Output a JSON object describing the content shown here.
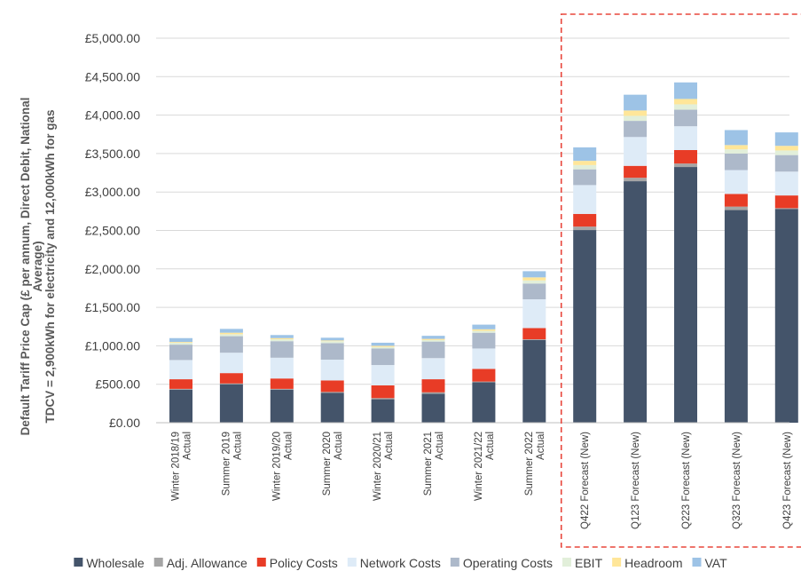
{
  "chart_data": {
    "type": "bar",
    "stacked": true,
    "ylabel_lines": [
      "Default Tariff Price Cap (£ per annum, Direct Debit, National",
      "Average)",
      "TDCV = 2,900kWh for electricity and 12,000kWh for gas"
    ],
    "ylim": [
      0,
      5000
    ],
    "yticks": [
      "£0.00",
      "£500.00",
      "£1,000.00",
      "£1,500.00",
      "£2,000.00",
      "£2,500.00",
      "£3,000.00",
      "£3,500.00",
      "£4,000.00",
      "£4,500.00",
      "£5,000.00"
    ],
    "ytick_values": [
      0,
      500,
      1000,
      1500,
      2000,
      2500,
      3000,
      3500,
      4000,
      4500,
      5000
    ],
    "grid": true,
    "legend_position": "bottom",
    "categories": [
      [
        "Winter 2018/19",
        "Actual"
      ],
      [
        "Summer 2019",
        "Actual"
      ],
      [
        "Winter 2019/20",
        "Actual"
      ],
      [
        "Summer 2020",
        "Actual"
      ],
      [
        "Winter 2020/21",
        "Actual"
      ],
      [
        "Summer 2021",
        "Actual"
      ],
      [
        "Winter 2021/22",
        "Actual"
      ],
      [
        "Summer 2022",
        "Actual"
      ],
      [
        "Q422 Forecast (New)"
      ],
      [
        "Q123 Forecast (New)"
      ],
      [
        "Q223 Forecast (New)"
      ],
      [
        "Q323 Forecast (New)"
      ],
      [
        "Q423 Forecast (New)"
      ]
    ],
    "highlighted_range": [
      8,
      12
    ],
    "series": [
      {
        "name": "Wholesale",
        "color": "#44546a",
        "values": [
          430,
          500,
          430,
          390,
          305,
          375,
          525,
          1075,
          2505,
          3140,
          3325,
          2765,
          2780
        ]
      },
      {
        "name": "Adj. Allowance",
        "color": "#a5a5a5",
        "values": [
          10,
          10,
          10,
          10,
          15,
          20,
          10,
          10,
          45,
          45,
          45,
          45,
          10
        ]
      },
      {
        "name": "Policy Costs",
        "color": "#e83c26",
        "values": [
          125,
          135,
          135,
          150,
          165,
          170,
          165,
          145,
          165,
          155,
          175,
          165,
          165
        ]
      },
      {
        "name": "Network Costs",
        "color": "#deebf7",
        "values": [
          250,
          265,
          270,
          270,
          265,
          275,
          265,
          375,
          375,
          375,
          310,
          310,
          310
        ]
      },
      {
        "name": "Operating Costs",
        "color": "#adb9ca",
        "values": [
          200,
          215,
          215,
          215,
          215,
          215,
          205,
          205,
          205,
          210,
          215,
          215,
          215
        ]
      },
      {
        "name": "EBIT",
        "color": "#e2efda",
        "values": [
          25,
          25,
          25,
          25,
          20,
          20,
          25,
          40,
          55,
          65,
          70,
          55,
          60
        ]
      },
      {
        "name": "Headroom",
        "color": "#ffe699",
        "values": [
          10,
          20,
          15,
          10,
          15,
          15,
          20,
          40,
          55,
          70,
          70,
          55,
          60
        ]
      },
      {
        "name": "VAT",
        "color": "#9dc3e6",
        "values": [
          50,
          50,
          40,
          35,
          40,
          40,
          60,
          80,
          175,
          205,
          215,
          195,
          175
        ]
      }
    ]
  }
}
